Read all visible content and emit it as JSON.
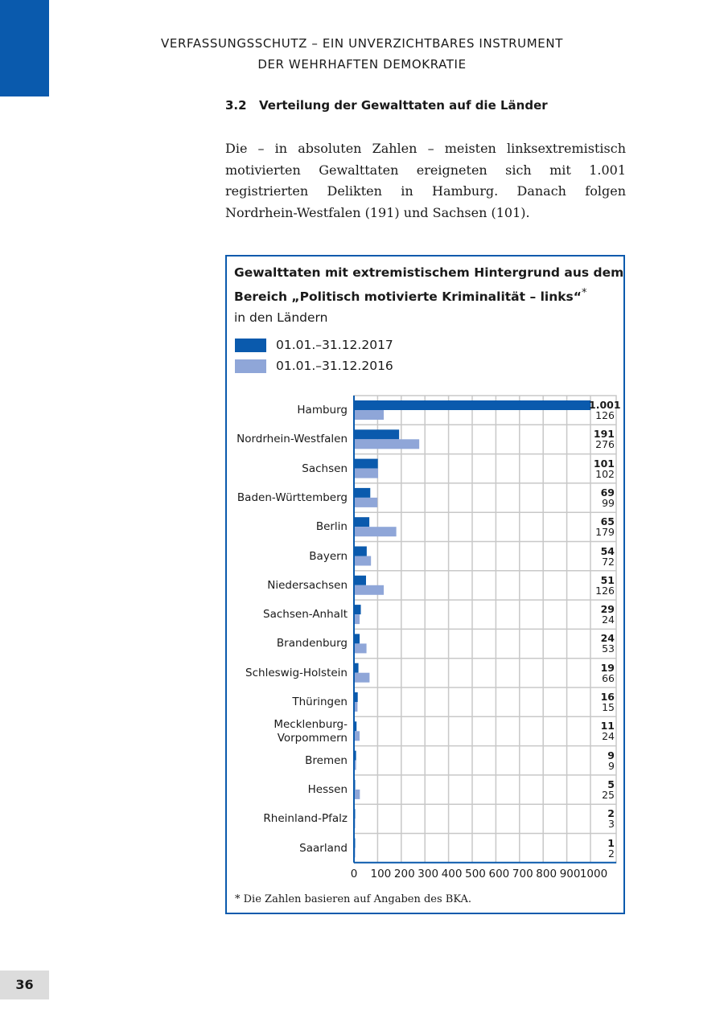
{
  "header": {
    "line1": "VERFASSUNGSSCHUTZ – EIN UNVERZICHTBARES INSTRUMENT",
    "line2": "DER WEHRHAFTEN DEMOKRATIE"
  },
  "section": {
    "number": "3.2",
    "title": "Verteilung der Gewalttaten auf die Länder"
  },
  "paragraph": "Die – in absoluten Zahlen – meisten linksextremistisch motivierten Gewalttaten ereigneten sich mit 1.001 registrierten Delikten in Hamburg. Danach folgen Nordrhein-Westfalen (191) und Sachsen (101).",
  "page_number": "36",
  "colors": {
    "accent": "#0a5aad",
    "series_2017": "#0a5aad",
    "series_2016": "#8fa6d8",
    "grid": "#c8c8c8"
  },
  "chart_data": {
    "type": "bar",
    "orientation": "horizontal",
    "title_line1": "Gewalttaten mit extremistischem Hintergrund aus dem",
    "title_line2": "Bereich „Politisch motivierte Kriminalität – links“",
    "title_mark": "*",
    "subtitle": "in den Ländern",
    "legend_placement": "top-left",
    "grid": true,
    "xlim": [
      0,
      1000
    ],
    "xticks": [
      "0",
      "100",
      "200",
      "300",
      "400",
      "500",
      "600",
      "700",
      "800",
      "900",
      "1000"
    ],
    "categories": [
      "Hamburg",
      "Nordrhein-Westfalen",
      "Sachsen",
      "Baden-Württemberg",
      "Berlin",
      "Bayern",
      "Niedersachsen",
      "Sachsen-Anhalt",
      "Brandenburg",
      "Schleswig-Holstein",
      "Thüringen",
      "Mecklenburg-\nVorpommern",
      "Bremen",
      "Hessen",
      "Rheinland-Pfalz",
      "Saarland"
    ],
    "series": [
      {
        "name": "01.01.–31.12.2017",
        "values": [
          1001,
          191,
          101,
          69,
          65,
          54,
          51,
          29,
          24,
          19,
          16,
          11,
          9,
          5,
          2,
          1
        ],
        "labels": [
          "1.001",
          "191",
          "101",
          "69",
          "65",
          "54",
          "51",
          "29",
          "24",
          "19",
          "16",
          "11",
          "9",
          "5",
          "2",
          "1"
        ]
      },
      {
        "name": "01.01.–31.12.2016",
        "values": [
          126,
          276,
          102,
          99,
          179,
          72,
          126,
          24,
          53,
          66,
          15,
          24,
          9,
          25,
          3,
          2
        ],
        "labels": [
          "126",
          "276",
          "102",
          "99",
          "179",
          "72",
          "126",
          "24",
          "53",
          "66",
          "15",
          "24",
          "9",
          "25",
          "3",
          "2"
        ]
      }
    ],
    "footnote": "*  Die Zahlen basieren auf Angaben des BKA."
  }
}
